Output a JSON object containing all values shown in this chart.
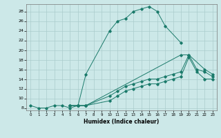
{
  "title": "",
  "xlabel": "Humidex (Indice chaleur)",
  "bg_color": "#cce8e8",
  "grid_color": "#aacccc",
  "line_color": "#1a7a6a",
  "xlim": [
    -0.5,
    23.5
  ],
  "ylim": [
    7.5,
    29.5
  ],
  "xticks": [
    0,
    1,
    2,
    3,
    4,
    5,
    6,
    7,
    8,
    9,
    10,
    11,
    12,
    13,
    14,
    15,
    16,
    17,
    18,
    19,
    20,
    21,
    22,
    23
  ],
  "yticks": [
    8,
    10,
    12,
    14,
    16,
    18,
    20,
    22,
    24,
    26,
    28
  ],
  "line_a": {
    "x": [
      0,
      1,
      2,
      3,
      4,
      5,
      6,
      7,
      10,
      11,
      12,
      13,
      14,
      15,
      16,
      17,
      19
    ],
    "y": [
      8.5,
      8.0,
      8.0,
      8.5,
      8.5,
      8.0,
      8.5,
      15.0,
      24.0,
      26.0,
      26.5,
      28.0,
      28.5,
      29.0,
      28.0,
      25.0,
      21.5
    ]
  },
  "line_b": {
    "x": [
      5,
      6,
      7,
      19,
      20,
      22,
      23
    ],
    "y": [
      8.5,
      8.5,
      8.5,
      19.0,
      19.0,
      16.0,
      15.0
    ]
  },
  "line_c": {
    "x": [
      5,
      6,
      7,
      10,
      11,
      12,
      13,
      14,
      15,
      16,
      17,
      18,
      19,
      20,
      21,
      22,
      23
    ],
    "y": [
      8.5,
      8.5,
      8.5,
      10.5,
      11.5,
      12.5,
      13.0,
      13.5,
      14.0,
      14.0,
      14.5,
      15.0,
      15.5,
      19.0,
      16.0,
      15.5,
      14.5
    ]
  },
  "line_d": {
    "x": [
      5,
      6,
      7,
      10,
      11,
      12,
      13,
      14,
      15,
      16,
      17,
      18,
      19,
      20,
      21,
      22,
      23
    ],
    "y": [
      8.5,
      8.5,
      8.5,
      9.5,
      10.5,
      11.5,
      12.0,
      12.5,
      13.0,
      13.0,
      13.5,
      14.0,
      14.5,
      18.5,
      15.5,
      14.0,
      14.0
    ]
  }
}
